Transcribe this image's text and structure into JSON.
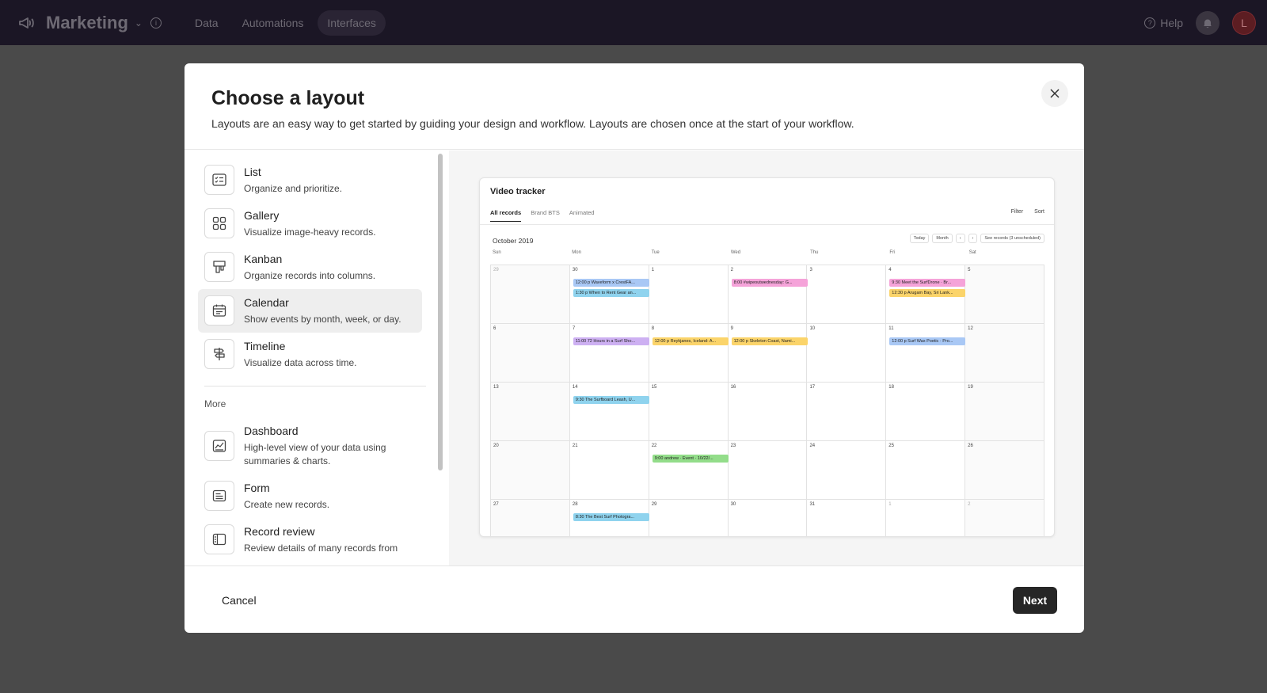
{
  "topbar": {
    "base_title": "Marketing",
    "tabs": [
      "Data",
      "Automations",
      "Interfaces"
    ],
    "help": "Help",
    "avatar_initial": "L"
  },
  "modal": {
    "title": "Choose a layout",
    "subtitle": "Layouts are an easy way to get started by guiding your design and workflow. Layouts are chosen once at the start of your workflow.",
    "layouts": [
      {
        "name": "List",
        "desc": "Organize and prioritize.",
        "icon": "list-icon"
      },
      {
        "name": "Gallery",
        "desc": "Visualize image-heavy records.",
        "icon": "gallery-icon"
      },
      {
        "name": "Kanban",
        "desc": "Organize records into columns.",
        "icon": "kanban-icon"
      },
      {
        "name": "Calendar",
        "desc": "Show events by month, week, or day.",
        "icon": "calendar-icon",
        "selected": true
      },
      {
        "name": "Timeline",
        "desc": "Visualize data across time.",
        "icon": "timeline-icon"
      }
    ],
    "more_label": "More",
    "more_layouts": [
      {
        "name": "Dashboard",
        "desc": "High-level view of your data using summaries & charts.",
        "icon": "dashboard-icon"
      },
      {
        "name": "Form",
        "desc": "Create new records.",
        "icon": "form-icon"
      },
      {
        "name": "Record review",
        "desc": "Review details of many records from",
        "icon": "record-review-icon"
      }
    ],
    "cancel_label": "Cancel",
    "next_label": "Next"
  },
  "preview": {
    "title": "Video tracker",
    "tabs": [
      "All records",
      "Brand BTS",
      "Animated"
    ],
    "filter": "Filter",
    "sort": "Sort",
    "month": "October 2019",
    "today": "Today",
    "view": "Month",
    "prev": "‹",
    "next": "›",
    "see_records": "See records (3 unscheduled)",
    "days": [
      "Sun",
      "Mon",
      "Tue",
      "Wed",
      "Thu",
      "Fri",
      "Sat"
    ],
    "weeks": [
      [
        "29",
        "30",
        "1",
        "2",
        "3",
        "4",
        "5"
      ],
      [
        "6",
        "7",
        "8",
        "9",
        "10",
        "11",
        "12"
      ],
      [
        "13",
        "14",
        "15",
        "16",
        "17",
        "18",
        "19"
      ],
      [
        "20",
        "21",
        "22",
        "23",
        "24",
        "25",
        "26"
      ],
      [
        "27",
        "28",
        "29",
        "30",
        "31",
        "1",
        "2"
      ]
    ],
    "muted_days": [
      "0-0",
      "4-5",
      "4-6"
    ],
    "events": [
      {
        "week": 0,
        "day": 1,
        "slot": 0,
        "time": "12:00 p",
        "text": "Waveform x CrestFA...",
        "color": "#a9c8f5"
      },
      {
        "week": 0,
        "day": 1,
        "slot": 1,
        "time": "1:30 p",
        "text": "When to Rent Gear an...",
        "color": "#8fd3ee"
      },
      {
        "week": 0,
        "day": 3,
        "slot": 0,
        "time": "8:00",
        "text": "#wipeoutwednesday: G...",
        "color": "#f5a3d9"
      },
      {
        "week": 0,
        "day": 5,
        "slot": 0,
        "time": "9:30",
        "text": "Meet the SurfDrone · Br...",
        "color": "#f5a3d9"
      },
      {
        "week": 0,
        "day": 5,
        "slot": 1,
        "time": "12:30 p",
        "text": "Arugam Bay, Sri Lank...",
        "color": "#fbd46a"
      },
      {
        "week": 1,
        "day": 1,
        "slot": 0,
        "time": "11:00",
        "text": "72 Hours in a Surf Sho...",
        "color": "#cdb0f2"
      },
      {
        "week": 1,
        "day": 2,
        "slot": 0,
        "time": "12:00 p",
        "text": "Reykjanes, Iceland: A...",
        "color": "#fbd46a"
      },
      {
        "week": 1,
        "day": 3,
        "slot": 0,
        "time": "12:00 p",
        "text": "Skeleton Coast, Nami...",
        "color": "#fbd46a"
      },
      {
        "week": 1,
        "day": 5,
        "slot": 0,
        "time": "12:00 p",
        "text": "Surf Wax Poetic · Pro...",
        "color": "#a9c8f5"
      },
      {
        "week": 2,
        "day": 1,
        "slot": 0,
        "time": "9:30",
        "text": "The Surfboard Leash, U...",
        "color": "#8fd3ee"
      },
      {
        "week": 3,
        "day": 2,
        "slot": 0,
        "time": "9:00",
        "text": "andrew · Event · 10/22/...",
        "color": "#93dd8a"
      },
      {
        "week": 4,
        "day": 1,
        "slot": 0,
        "time": "8:30",
        "text": "The Best Surf Photogra...",
        "color": "#8fd3ee"
      }
    ]
  }
}
